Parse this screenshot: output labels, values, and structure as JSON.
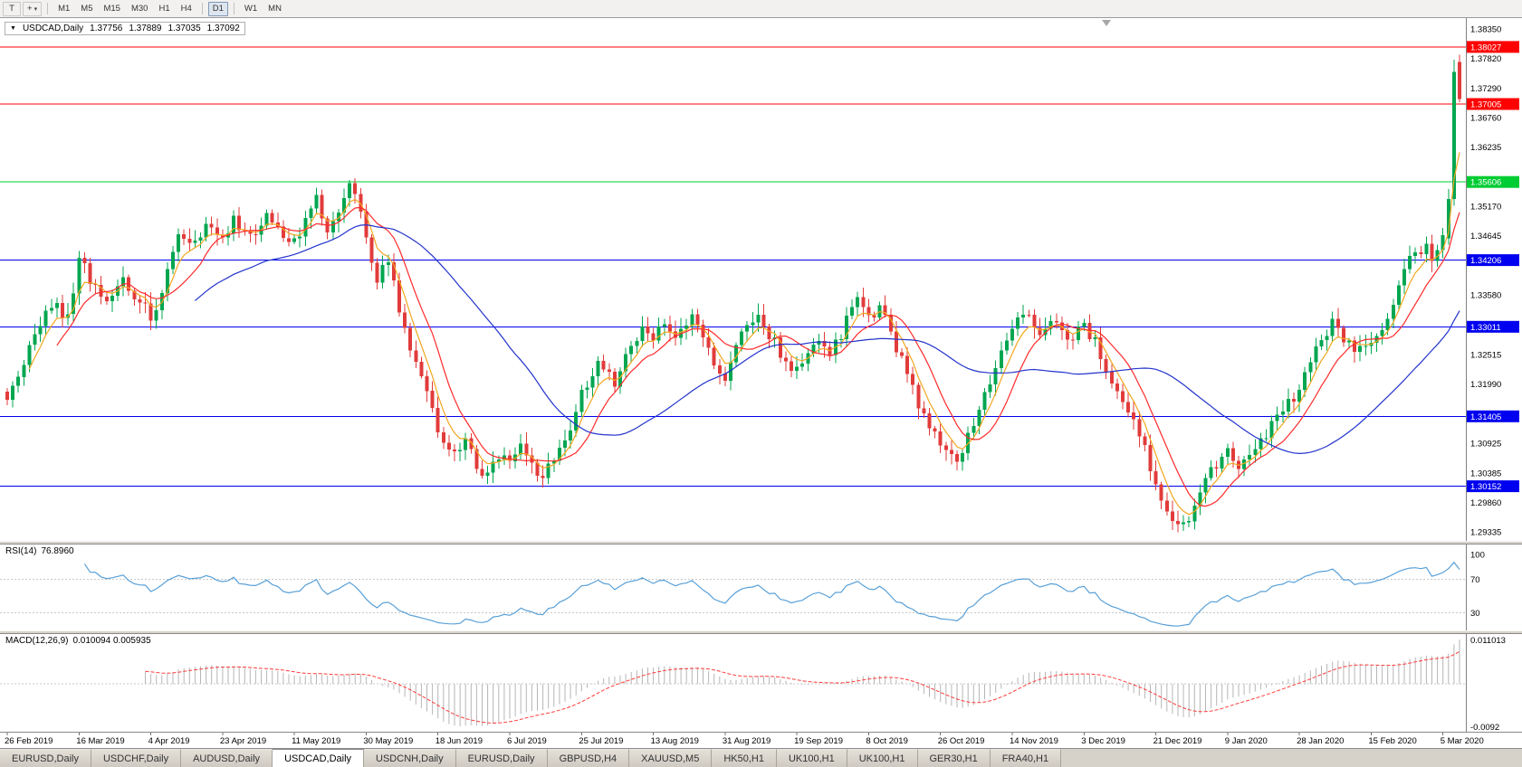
{
  "toolbar": {
    "tool_button_label": "T",
    "cursor_icon": "+",
    "dropdown_icon": "▾",
    "timeframes": [
      "M1",
      "M5",
      "M15",
      "M30",
      "H1",
      "H4",
      "D1",
      "W1",
      "MN"
    ],
    "active_timeframe": "D1"
  },
  "chart": {
    "collapse_icon": "▼",
    "title": "USDCAD,Daily",
    "ohlc": {
      "open": "1.37756",
      "high": "1.37889",
      "low": "1.37035",
      "close": "1.37092"
    }
  },
  "rsi_panel": {
    "label": "RSI(14)",
    "value": "76.8960",
    "axis_labels": [
      "100",
      "70",
      "30"
    ],
    "upper_level": 70,
    "lower_level": 30,
    "line_color": "#58a0d8"
  },
  "macd_panel": {
    "label": "MACD(12,26,9)",
    "values": "0.010094 0.005935",
    "axis_top_label": "0.011013",
    "axis_bottom_label": "-0.0092",
    "histogram_color": "#b6b6b6",
    "signal_color": "#ff3b3b"
  },
  "tabs": [
    "EURUSD,Daily",
    "USDCHF,Daily",
    "AUDUSD,Daily",
    "USDCAD,Daily",
    "USDCNH,Daily",
    "EURUSD,Daily",
    "GBPUSD,H4",
    "XAUUSD,M5",
    "HK50,H1",
    "UK100,H1",
    "UK100,H1",
    "GER30,H1",
    "FRA40,H1"
  ],
  "active_tab_index": 3,
  "chart_data": {
    "type": "candlestick",
    "symbol": "USDCAD",
    "timeframe": "Daily",
    "current_ohlc": {
      "open": 1.37756,
      "high": 1.37889,
      "low": 1.37035,
      "close": 1.37092
    },
    "up_color": "#00a650",
    "down_color": "#e23b3b",
    "price_axis_ticks": [
      "1.38350",
      "1.37820",
      "1.37290",
      "1.36760",
      "1.36235",
      "1.35170",
      "1.34645",
      "1.33580",
      "1.32515",
      "1.31990",
      "1.30925",
      "1.30385",
      "1.29860",
      "1.29335"
    ],
    "axis_top_price": 1.3835,
    "axis_bottom_price": 1.29335,
    "horizontal_lines": [
      {
        "price": 1.38027,
        "label": "1.38027",
        "color": "#ff0000"
      },
      {
        "price": 1.37005,
        "label": "1.37005",
        "color": "#ff0000"
      },
      {
        "price": 1.35606,
        "label": "1.35606",
        "color": "#00cc33"
      },
      {
        "price": 1.34206,
        "label": "1.34206",
        "color": "#0000f0"
      },
      {
        "price": 1.33011,
        "label": "1.33011",
        "color": "#0000f0"
      },
      {
        "price": 1.31405,
        "label": "1.31405",
        "color": "#0000f0"
      },
      {
        "price": 1.30152,
        "label": "1.30152",
        "color": "#0000f0"
      }
    ],
    "moving_averages": [
      {
        "type": "ema",
        "period": 5,
        "color": "#f3a71f"
      },
      {
        "type": "sma",
        "period": 10,
        "color": "#ff2a2a"
      },
      {
        "type": "sma",
        "period": 35,
        "color": "#2233cc"
      }
    ],
    "date_labels": [
      "26 Feb 2019",
      "16 Mar 2019",
      "4 Apr 2019",
      "23 Apr 2019",
      "11 May 2019",
      "30 May 2019",
      "18 Jun 2019",
      "6 Jul 2019",
      "25 Jul 2019",
      "13 Aug 2019",
      "31 Aug 2019",
      "19 Sep 2019",
      "8 Oct 2019",
      "26 Oct 2019",
      "14 Nov 2019",
      "3 Dec 2019",
      "21 Dec 2019",
      "9 Jan 2020",
      "28 Jan 2020",
      "15 Feb 2020",
      "5 Mar 2020"
    ],
    "bars_per_date_label": 13,
    "candle_count": 264,
    "close_anchors": [
      [
        0,
        1.317
      ],
      [
        2,
        1.3215
      ],
      [
        5,
        1.329
      ],
      [
        8,
        1.3345
      ],
      [
        11,
        1.3315
      ],
      [
        13,
        1.343
      ],
      [
        15,
        1.3385
      ],
      [
        18,
        1.334
      ],
      [
        21,
        1.339
      ],
      [
        24,
        1.3345
      ],
      [
        26,
        1.332
      ],
      [
        28,
        1.336
      ],
      [
        31,
        1.3475
      ],
      [
        34,
        1.3445
      ],
      [
        36,
        1.349
      ],
      [
        39,
        1.345
      ],
      [
        41,
        1.349
      ],
      [
        44,
        1.346
      ],
      [
        47,
        1.35
      ],
      [
        50,
        1.347
      ],
      [
        52,
        1.345
      ],
      [
        54,
        1.349
      ],
      [
        56,
        1.353
      ],
      [
        58,
        1.348
      ],
      [
        60,
        1.3505
      ],
      [
        62,
        1.355
      ],
      [
        64,
        1.3505
      ],
      [
        65,
        1.345
      ],
      [
        67,
        1.338
      ],
      [
        69,
        1.342
      ],
      [
        71,
        1.333
      ],
      [
        74,
        1.323
      ],
      [
        77,
        1.316
      ],
      [
        78,
        1.312
      ],
      [
        80,
        1.307
      ],
      [
        83,
        1.309
      ],
      [
        86,
        1.304
      ],
      [
        89,
        1.307
      ],
      [
        91,
        1.305
      ],
      [
        93,
        1.308
      ],
      [
        96,
        1.303
      ],
      [
        99,
        1.306
      ],
      [
        102,
        1.312
      ],
      [
        104,
        1.318
      ],
      [
        107,
        1.323
      ],
      [
        110,
        1.32
      ],
      [
        112,
        1.325
      ],
      [
        115,
        1.33
      ],
      [
        117,
        1.327
      ],
      [
        119,
        1.331
      ],
      [
        121,
        1.328
      ],
      [
        124,
        1.332
      ],
      [
        127,
        1.326
      ],
      [
        130,
        1.32
      ],
      [
        133,
        1.329
      ],
      [
        136,
        1.333
      ],
      [
        138,
        1.329
      ],
      [
        141,
        1.324
      ],
      [
        143,
        1.322
      ],
      [
        146,
        1.328
      ],
      [
        149,
        1.325
      ],
      [
        152,
        1.331
      ],
      [
        154,
        1.336
      ],
      [
        156,
        1.332
      ],
      [
        158,
        1.334
      ],
      [
        160,
        1.329
      ],
      [
        163,
        1.321
      ],
      [
        166,
        1.314
      ],
      [
        169,
        1.309
      ],
      [
        172,
        1.306
      ],
      [
        175,
        1.313
      ],
      [
        178,
        1.32
      ],
      [
        181,
        1.327
      ],
      [
        182,
        1.33
      ],
      [
        184,
        1.333
      ],
      [
        187,
        1.329
      ],
      [
        190,
        1.331
      ],
      [
        193,
        1.328
      ],
      [
        195,
        1.33
      ],
      [
        197,
        1.327
      ],
      [
        200,
        1.32
      ],
      [
        203,
        1.315
      ],
      [
        206,
        1.308
      ],
      [
        208,
        1.301
      ],
      [
        211,
        1.296
      ],
      [
        213,
        1.2945
      ],
      [
        215,
        1.298
      ],
      [
        218,
        1.304
      ],
      [
        221,
        1.308
      ],
      [
        223,
        1.305
      ],
      [
        226,
        1.308
      ],
      [
        229,
        1.312
      ],
      [
        232,
        1.316
      ],
      [
        234,
        1.319
      ],
      [
        236,
        1.323
      ],
      [
        238,
        1.328
      ],
      [
        240,
        1.331
      ],
      [
        242,
        1.328
      ],
      [
        244,
        1.325
      ],
      [
        247,
        1.327
      ],
      [
        249,
        1.33
      ],
      [
        251,
        1.334
      ],
      [
        253,
        1.34
      ],
      [
        255,
        1.344
      ],
      [
        256,
        1.342
      ],
      [
        257,
        1.345
      ],
      [
        258,
        1.343
      ],
      [
        259,
        1.344
      ],
      [
        260,
        1.346
      ],
      [
        261,
        1.353
      ],
      [
        262,
        1.3758
      ],
      [
        263,
        1.37092
      ]
    ],
    "final_candles": [
      {
        "o": 1.346,
        "h": 1.3548,
        "l": 1.3448,
        "c": 1.353
      },
      {
        "o": 1.353,
        "h": 1.378,
        "l": 1.3518,
        "c": 1.3758
      },
      {
        "o": 1.37756,
        "h": 1.37889,
        "l": 1.37035,
        "c": 1.37092
      }
    ],
    "rsi": {
      "period": 14,
      "current": 76.896
    },
    "macd": {
      "fast": 12,
      "slow": 26,
      "signal": 9,
      "macd_value": 0.010094,
      "signal_value": 0.005935
    }
  }
}
